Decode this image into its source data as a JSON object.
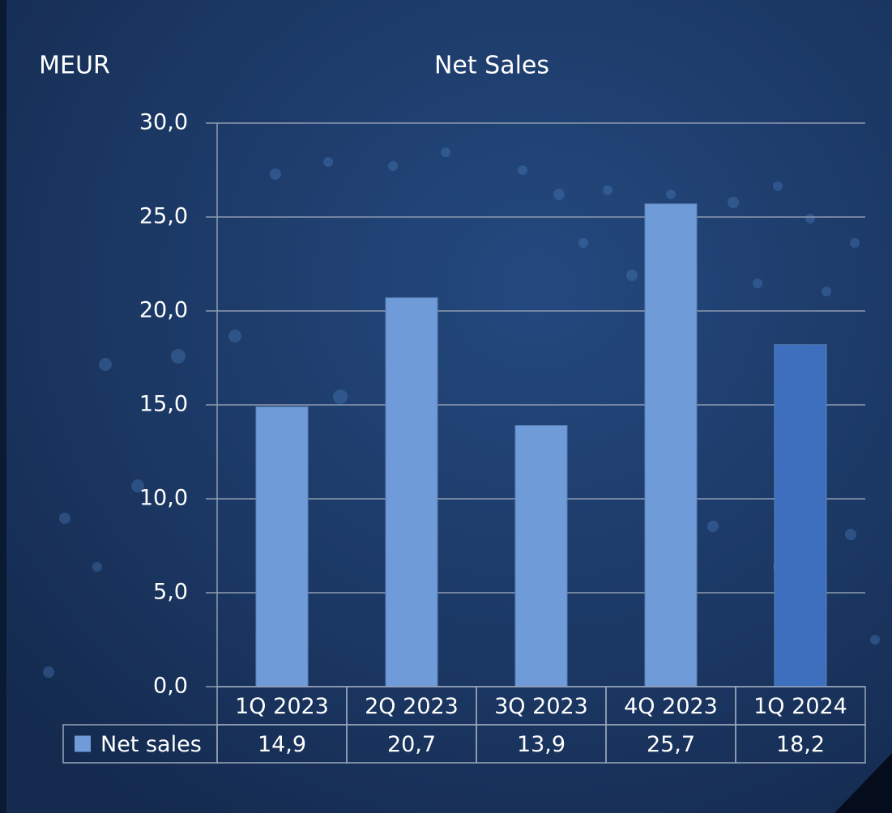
{
  "chart_data": {
    "type": "bar",
    "title": "Net Sales",
    "y_label": "MEUR",
    "categories": [
      "1Q 2023",
      "2Q 2023",
      "3Q 2023",
      "4Q 2023",
      "1Q 2024"
    ],
    "series": [
      {
        "name": "Net sales",
        "color": "#6f9bd8",
        "colors": [
          "#6f9bd8",
          "#6f9bd8",
          "#6f9bd8",
          "#6f9bd8",
          "#3d6fbe"
        ],
        "values": [
          14.9,
          20.7,
          13.9,
          25.7,
          18.2
        ],
        "value_labels": [
          "14,9",
          "20,7",
          "13,9",
          "25,7",
          "18,2"
        ]
      }
    ],
    "ylim": [
      0,
      30
    ],
    "yticks": [
      {
        "value": 0,
        "label": "0,0"
      },
      {
        "value": 5,
        "label": "5,0"
      },
      {
        "value": 10,
        "label": "10,0"
      },
      {
        "value": 15,
        "label": "15,0"
      },
      {
        "value": 20,
        "label": "20,0"
      },
      {
        "value": 25,
        "label": "25,0"
      },
      {
        "value": 30,
        "label": "30,0"
      }
    ],
    "grid": true,
    "data_table": true
  }
}
